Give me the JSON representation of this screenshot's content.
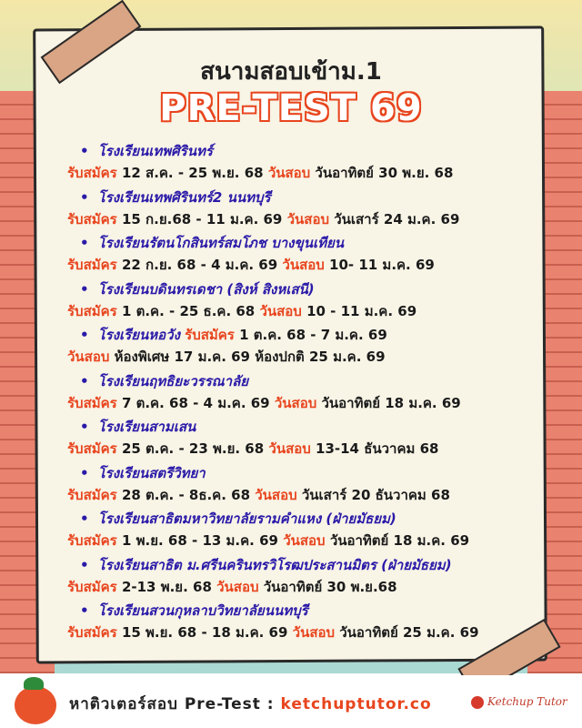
{
  "title": "สนามสอบเข้าม.1",
  "headline": "PRE-TEST 69",
  "apply_label": "รับสมัคร",
  "exam_label": "วันสอบ",
  "schools": [
    {
      "name": "โรงเรียนเทพศิรินทร์",
      "apply": "12 ส.ค. - 25 พ.ย. 68",
      "exam": "วันอาทิตย์ 30 พ.ย. 68"
    },
    {
      "name": "โรงเรียนเทพศิรินทร์2 นนทบุรี",
      "apply": "15 ก.ย.68 - 11 ม.ค. 69",
      "exam": "วันเสาร์ 24 ม.ค. 69"
    },
    {
      "name": "โรงเรียนรัตนโกสินทร์สมโภช บางขุนเทียน",
      "apply": "22 ก.ย. 68 - 4 ม.ค. 69",
      "exam": "10- 11 ม.ค. 69"
    },
    {
      "name": "โรงเรียนบดินทรเดชา (สิงห์ สิงหเสนี)",
      "apply": "1 ต.ค. - 25 ธ.ค. 68",
      "exam": "10 - 11 ม.ค. 69"
    },
    {
      "name": "โรงเรียนหอวัง",
      "apply": "1 ต.ค. 68 - 7 ม.ค. 69",
      "exam": "ห้องพิเศษ 17 ม.ค. 69 ห้องปกติ 25 ม.ค. 69",
      "inline_apply": true
    },
    {
      "name": "โรงเรียนฤทธิยะวรรณาลัย",
      "apply": "7 ต.ค. 68 - 4 ม.ค. 69",
      "exam": "วันอาทิตย์ 18 ม.ค. 69"
    },
    {
      "name": "โรงเรียนสามเสน",
      "apply": "25 ต.ค. - 23 พ.ย. 68",
      "exam": "13-14 ธันวาคม 68"
    },
    {
      "name": "โรงเรียนสตรีวิทยา",
      "apply": "28 ต.ค. - 8ธ.ค. 68",
      "exam": "วันเสาร์ 20 ธันวาคม 68"
    },
    {
      "name": "โรงเรียนสาธิตมหาวิทยาลัยรามคำแหง (ฝ่ายมัธยม)",
      "apply": "1 พ.ย. 68 - 13 ม.ค. 69",
      "exam": "วันอาทิตย์ 18 ม.ค. 69"
    },
    {
      "name": "โรงเรียนสาธิต ม.ศรีนครินทรวิโรฒประสานมิตร (ฝ่ายมัธยม)",
      "apply": "2-13 พ.ย. 68",
      "exam": "วันอาทิตย์ 30 พ.ย.68"
    },
    {
      "name": "โรงเรียนสวนกุหลาบวิทยาลัยนนทบุรี",
      "apply": "15 พ.ย. 68 - 18 ม.ค. 69",
      "exam": "วันอาทิตย์ 25 ม.ค. 69"
    }
  ],
  "footer": {
    "text": "หาติวเตอร์สอบ Pre-Test : ",
    "url": "ketchuptutor.co",
    "logo": "Ketchup Tutor"
  },
  "colors": {
    "school_name": "#2a1aa8",
    "label": "#e8451e",
    "headline_outline": "#e8451e",
    "text": "#1a1a1a"
  }
}
